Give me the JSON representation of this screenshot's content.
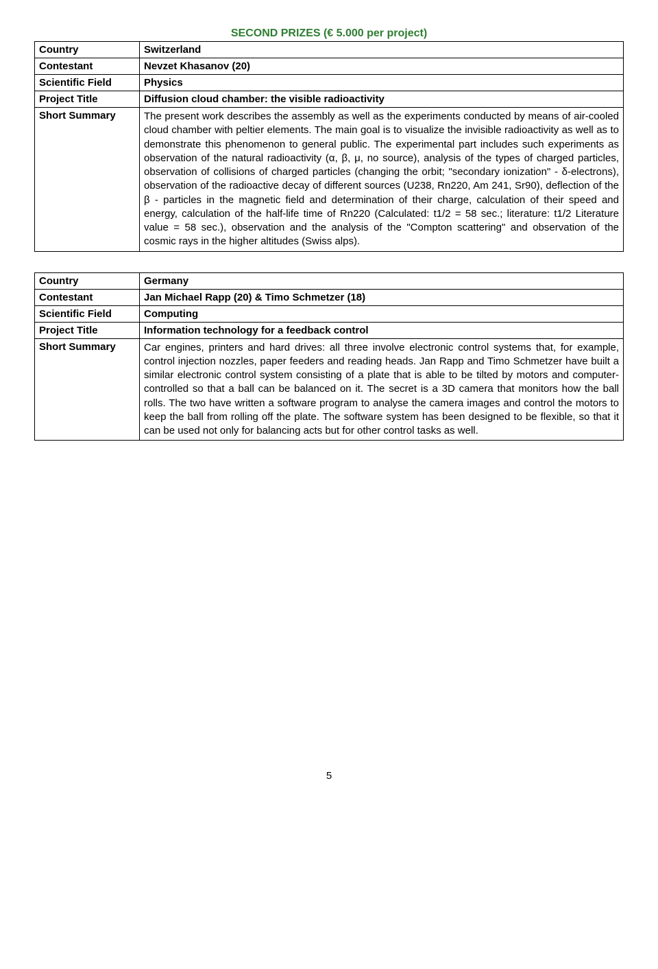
{
  "heading": "SECOND PRIZES (€ 5.000 per project)",
  "entries": [
    {
      "country_label": "Country",
      "country": "Switzerland",
      "contestant_label": "Contestant",
      "contestant": "Nevzet Khasanov (20)",
      "field_label": "Scientific Field",
      "field": "Physics",
      "title_label": "Project Title",
      "title": "Diffusion cloud chamber: the visible radioactivity",
      "summary_label": "Short Summary",
      "summary": "The present work describes the assembly as well as the experiments conducted by means of air-cooled cloud chamber with peltier elements. The main goal is to visualize the invisible radioactivity as well as to demonstrate this phenomenon to general public. The experimental part includes such experiments as observation of the natural radioactivity (α, β, μ, no source), analysis of the types of charged particles, observation of collisions of charged particles (changing the orbit; \"secondary ionization\" - δ-electrons), observation of the radioactive decay of different sources (U238, Rn220, Am 241, Sr90), deflection of the β - particles in the magnetic field and determination of their charge, calculation of their speed and energy, calculation of the half-life time of Rn220 (Calculated: t1/2 = 58 sec.; literature: t1/2 Literature value = 58 sec.), observation and the analysis of the \"Compton scattering\" and observation of the cosmic rays in the higher altitudes (Swiss alps)."
    },
    {
      "country_label": "Country",
      "country": "Germany",
      "contestant_label": "Contestant",
      "contestant": "Jan Michael Rapp (20) & Timo Schmetzer (18)",
      "field_label": "Scientific Field",
      "field": "Computing",
      "title_label": "Project Title",
      "title": "Information technology for a feedback control",
      "summary_label": "Short Summary",
      "summary": "Car engines, printers and hard drives: all three involve electronic control systems that, for example, control injection nozzles, paper feeders and reading heads. Jan Rapp and Timo Schmetzer have built a similar electronic control system consisting of a plate that is able to be tilted by motors and computer-controlled so that a ball can be balanced on it. The secret is a 3D camera that monitors how the ball rolls. The two have written a software program to analyse the camera images and control the motors to keep the ball from rolling off the plate. The software system has been designed to be flexible, so that it can be used not only for balancing acts but for other control tasks as well."
    }
  ],
  "page_number": "5"
}
